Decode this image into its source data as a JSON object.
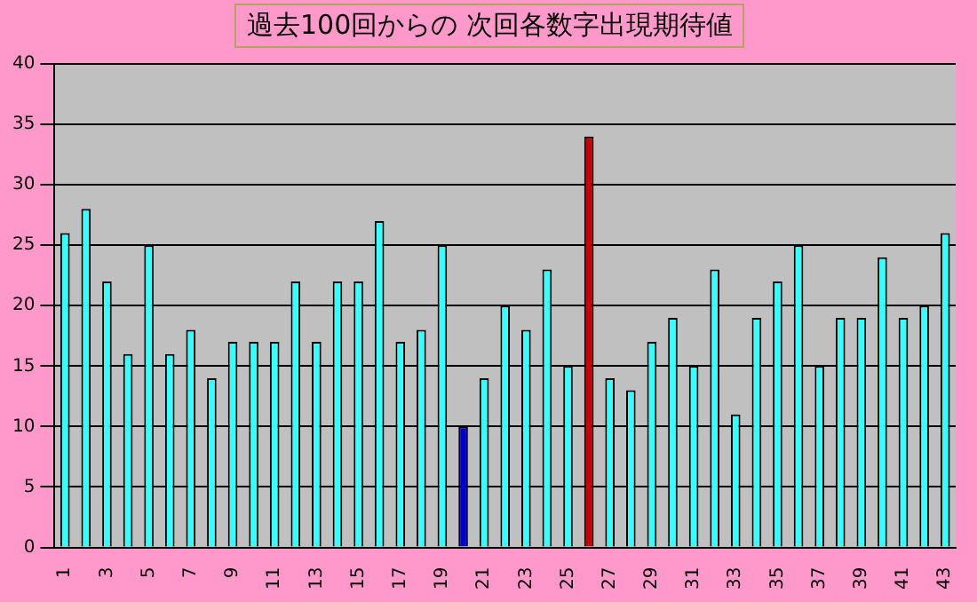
{
  "chart_data": {
    "type": "bar",
    "title": "過去100回からの 次回各数字出現期待値",
    "categories": [
      "1",
      null,
      "3",
      null,
      "5",
      null,
      "7",
      null,
      "9",
      null,
      "11",
      null,
      "13",
      null,
      "15",
      null,
      "17",
      null,
      "19",
      null,
      "21",
      null,
      "23",
      null,
      "25",
      null,
      "27",
      null,
      "29",
      null,
      "31",
      null,
      "33",
      null,
      "35",
      null,
      "37",
      null,
      "39",
      null,
      "41",
      null,
      "43"
    ],
    "values": [
      26,
      28,
      22,
      16,
      25,
      16,
      18,
      14,
      17,
      17,
      17,
      22,
      17,
      22,
      22,
      27,
      17,
      18,
      25,
      10,
      14,
      20,
      18,
      23,
      15,
      34,
      14,
      13,
      17,
      19,
      15,
      23,
      11,
      19,
      22,
      25,
      15,
      19,
      19,
      24,
      19,
      20,
      26
    ],
    "colors": [
      "#33ffff",
      "#33ffff",
      "#33ffff",
      "#33ffff",
      "#33ffff",
      "#33ffff",
      "#33ffff",
      "#33ffff",
      "#33ffff",
      "#33ffff",
      "#33ffff",
      "#33ffff",
      "#33ffff",
      "#33ffff",
      "#33ffff",
      "#33ffff",
      "#33ffff",
      "#33ffff",
      "#33ffff",
      "#0000cc",
      "#33ffff",
      "#33ffff",
      "#33ffff",
      "#33ffff",
      "#33ffff",
      "#cc0000",
      "#33ffff",
      "#33ffff",
      "#33ffff",
      "#33ffff",
      "#33ffff",
      "#33ffff",
      "#33ffff",
      "#33ffff",
      "#33ffff",
      "#33ffff",
      "#33ffff",
      "#33ffff",
      "#33ffff",
      "#33ffff",
      "#33ffff",
      "#33ffff",
      "#33ffff"
    ],
    "ylim": [
      0,
      40
    ],
    "yticks": [
      0,
      5,
      10,
      15,
      20,
      25,
      30,
      35,
      40
    ],
    "grid": "y",
    "legend": false
  }
}
